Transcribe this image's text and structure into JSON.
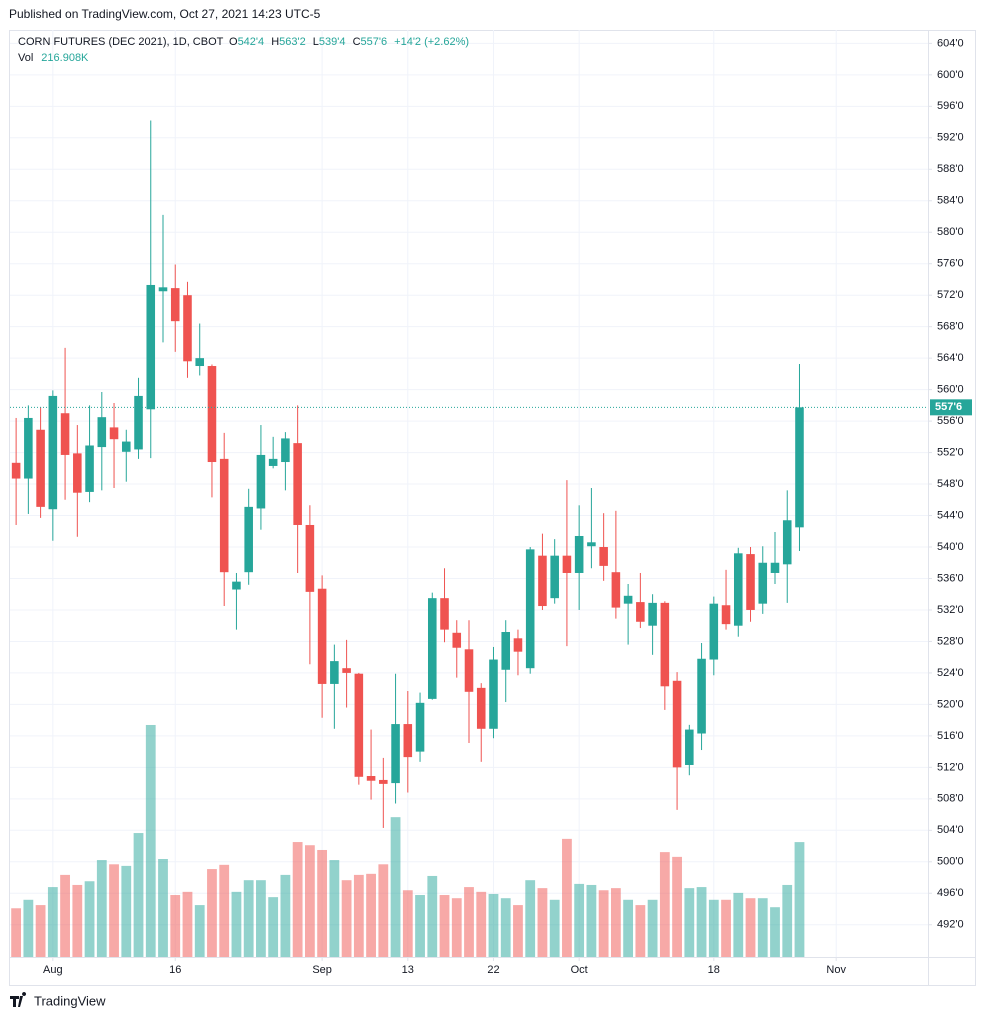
{
  "header_text": "Published on TradingView.com, Oct 27, 2021 14:23 UTC-5",
  "footer_text": "TradingView",
  "chart_data": {
    "type": "candlestick",
    "title": "CORN FUTURES (DEC 2021), 1D, CBOT",
    "legend": {
      "o_label": "O",
      "o": "542'4",
      "h_label": "H",
      "h": "563'2",
      "l_label": "L",
      "l": "539'4",
      "c_label": "C",
      "c": "557'6",
      "change": "+14'2 (+2.62%)"
    },
    "up_color": "#26a69a",
    "down_color": "#ef5350",
    "open": [
      550.7,
      548.7,
      554.9,
      544.8,
      557.0,
      551.9,
      547.0,
      552.7,
      555.2,
      552.1,
      552.4,
      557.5,
      572.5,
      572.9,
      572.0,
      563.0,
      563.0,
      551.2,
      534.6,
      536.8,
      544.9,
      550.3,
      550.8,
      553.2,
      542.8,
      534.7,
      522.6,
      524.6,
      523.9,
      510.9,
      510.4,
      510.0,
      517.5,
      514.0,
      520.7,
      533.5,
      529.1,
      527.0,
      522.1,
      516.9,
      524.4,
      528.4,
      524.6,
      538.9,
      533.5,
      538.9,
      536.7,
      540.1,
      540.0,
      536.8,
      532.8,
      533.0,
      530.0,
      532.9,
      523.0,
      512.3,
      516.3,
      525.7,
      532.6,
      530.0,
      539.1,
      532.8,
      536.7,
      537.8,
      542.5
    ],
    "high": [
      556.4,
      558.0,
      557.8,
      559.9,
      565.3,
      555.5,
      558.0,
      559.7,
      558.3,
      554.9,
      561.5,
      594.2,
      582.2,
      575.9,
      573.7,
      568.4,
      563.2,
      554.5,
      536.7,
      547.4,
      555.5,
      554.0,
      554.6,
      558.0,
      545.3,
      536.4,
      527.6,
      528.2,
      524.0,
      516.8,
      513.2,
      523.9,
      521.7,
      521.5,
      534.2,
      537.3,
      530.7,
      530.7,
      522.7,
      527.3,
      530.7,
      529.5,
      540.0,
      541.7,
      541.0,
      548.5,
      545.3,
      547.5,
      544.3,
      544.6,
      535.3,
      536.7,
      534.0,
      533.1,
      524.1,
      517.4,
      527.8,
      533.7,
      537.1,
      539.9,
      540.0,
      540.1,
      541.9,
      547.2,
      563.25
    ],
    "low": [
      542.8,
      544.2,
      543.7,
      540.8,
      546.0,
      541.3,
      545.7,
      547.2,
      547.5,
      548.3,
      551.2,
      551.3,
      566.0,
      564.8,
      561.5,
      561.8,
      546.3,
      532.5,
      529.5,
      535.2,
      542.2,
      550.0,
      547.2,
      536.7,
      525.1,
      518.3,
      516.9,
      519.6,
      509.8,
      507.9,
      504.3,
      507.4,
      508.8,
      512.7,
      520.6,
      527.9,
      523.4,
      515.1,
      512.7,
      515.7,
      520.3,
      523.7,
      523.9,
      532.0,
      532.8,
      527.4,
      532.0,
      537.3,
      535.7,
      530.9,
      527.6,
      529.7,
      526.3,
      519.3,
      506.6,
      511.0,
      514.2,
      523.7,
      529.5,
      528.6,
      530.5,
      531.5,
      535.3,
      532.9,
      539.5
    ],
    "close": [
      548.7,
      556.4,
      545.1,
      559.2,
      551.7,
      546.9,
      552.9,
      556.5,
      553.7,
      553.4,
      559.2,
      573.3,
      573.0,
      568.7,
      563.6,
      564.0,
      550.8,
      536.8,
      535.6,
      545.1,
      551.7,
      551.2,
      553.8,
      542.8,
      534.3,
      522.6,
      525.5,
      524.0,
      510.8,
      510.3,
      509.9,
      517.5,
      513.3,
      520.2,
      533.5,
      529.5,
      527.2,
      521.6,
      516.9,
      525.7,
      529.2,
      526.7,
      539.7,
      532.5,
      538.9,
      536.7,
      541.4,
      540.6,
      537.6,
      532.3,
      533.8,
      530.5,
      532.9,
      522.3,
      512.0,
      516.8,
      525.8,
      532.8,
      530.2,
      539.2,
      532.0,
      538.0,
      538.0,
      543.4,
      557.75
    ],
    "volume": {
      "name": "Vol",
      "value_label": "216.908K",
      "values": [
        92,
        108,
        98,
        132,
        155,
        136,
        143,
        183,
        175,
        172,
        234,
        438,
        185,
        117,
        123,
        98,
        166,
        174,
        123,
        145,
        145,
        113,
        155,
        217,
        211,
        202,
        183,
        145,
        155,
        157,
        175,
        264,
        126,
        117,
        153,
        117,
        111,
        132,
        123,
        119,
        111,
        98,
        145,
        130,
        108,
        223,
        138,
        136,
        126,
        130,
        108,
        98,
        108,
        198,
        189,
        130,
        132,
        108,
        108,
        121,
        111,
        111,
        94,
        136,
        216.908
      ],
      "ylim": [
        0,
        1750
      ]
    },
    "last_price": {
      "value": 557.75,
      "label": "557'6"
    },
    "xlim": [
      -0.5,
      74.5
    ],
    "xticks": [
      {
        "value": 3,
        "label": "Aug"
      },
      {
        "value": 13,
        "label": "16"
      },
      {
        "value": 25,
        "label": "Sep"
      },
      {
        "value": 32,
        "label": "13"
      },
      {
        "value": 39,
        "label": "22"
      },
      {
        "value": 46,
        "label": "Oct"
      },
      {
        "value": 57,
        "label": "18"
      },
      {
        "value": 67,
        "label": "Nov"
      }
    ],
    "ylim": [
      487.9,
      605.7
    ],
    "yticks": [
      {
        "value": 492,
        "label": "492'0"
      },
      {
        "value": 496,
        "label": "496'0"
      },
      {
        "value": 500,
        "label": "500'0"
      },
      {
        "value": 504,
        "label": "504'0"
      },
      {
        "value": 508,
        "label": "508'0"
      },
      {
        "value": 512,
        "label": "512'0"
      },
      {
        "value": 516,
        "label": "516'0"
      },
      {
        "value": 520,
        "label": "520'0"
      },
      {
        "value": 524,
        "label": "524'0"
      },
      {
        "value": 528,
        "label": "528'0"
      },
      {
        "value": 532,
        "label": "532'0"
      },
      {
        "value": 536,
        "label": "536'0"
      },
      {
        "value": 540,
        "label": "540'0"
      },
      {
        "value": 544,
        "label": "544'0"
      },
      {
        "value": 548,
        "label": "548'0"
      },
      {
        "value": 552,
        "label": "552'0"
      },
      {
        "value": 556,
        "label": "556'0"
      },
      {
        "value": 560,
        "label": "560'0"
      },
      {
        "value": 564,
        "label": "564'0"
      },
      {
        "value": 568,
        "label": "568'0"
      },
      {
        "value": 572,
        "label": "572'0"
      },
      {
        "value": 576,
        "label": "576'0"
      },
      {
        "value": 580,
        "label": "580'0"
      },
      {
        "value": 584,
        "label": "584'0"
      },
      {
        "value": 588,
        "label": "588'0"
      },
      {
        "value": 592,
        "label": "592'0"
      },
      {
        "value": 596,
        "label": "596'0"
      },
      {
        "value": 600,
        "label": "600'0"
      },
      {
        "value": 604,
        "label": "604'0"
      }
    ],
    "grid": true
  }
}
